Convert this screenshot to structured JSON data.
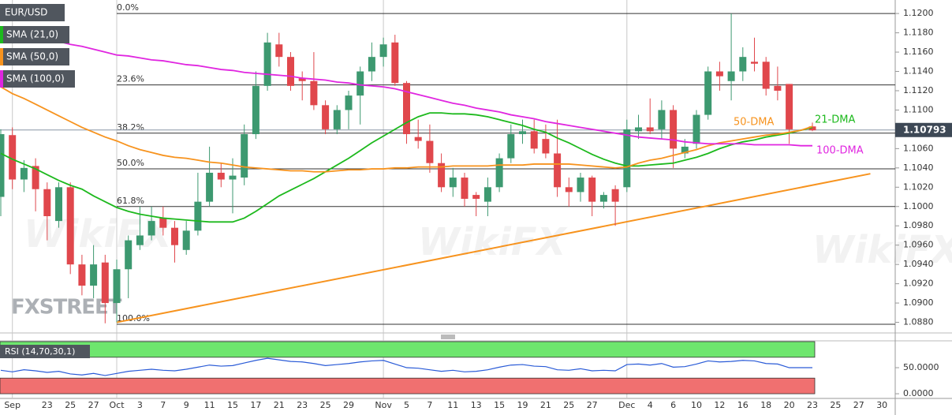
{
  "chart_data": {
    "type": "candlestick",
    "symbol": "EUR/USD",
    "categories": [
      null,
      "Sep",
      null,
      null,
      "23",
      null,
      "25",
      null,
      "27",
      null,
      "Oct",
      null,
      "3",
      null,
      "7",
      null,
      "9",
      null,
      "11",
      null,
      "15",
      null,
      "17",
      null,
      "21",
      null,
      "23",
      null,
      "25",
      null,
      "29",
      null,
      null,
      "Nov",
      null,
      "5",
      null,
      "7",
      null,
      "11",
      null,
      "13",
      null,
      "15",
      null,
      "19",
      null,
      "21",
      null,
      "25",
      null,
      "27",
      null,
      null,
      "Dec",
      null,
      "4",
      null,
      "6",
      null,
      "10",
      null,
      "12",
      null,
      "16",
      null,
      "18",
      null,
      "20",
      null,
      "23",
      null,
      "25",
      null,
      "27",
      null,
      "30",
      null
    ],
    "open": [
      1.101,
      1.1074,
      1.1028,
      1.1042,
      1.1018,
      1.0985,
      1.102,
      1.094,
      1.0918,
      1.0942,
      1.09,
      1.0935,
      1.096,
      1.097,
      1.0988,
      1.0978,
      1.0955,
      1.0975,
      1.1005,
      1.1035,
      1.1028,
      1.103,
      1.1075,
      1.1125,
      1.1168,
      1.1155,
      1.1133,
      1.113,
      1.1105,
      1.108,
      1.11,
      1.1115,
      1.114,
      1.1155,
      1.117,
      1.1128,
      1.1072,
      1.1068,
      1.1045,
      1.102,
      1.103,
      1.1012,
      1.1005,
      1.102,
      1.105,
      1.1075,
      1.1078,
      1.107,
      1.1055,
      1.102,
      1.1015,
      1.103,
      1.1005,
      1.1018,
      1.102,
      1.1078,
      1.1082,
      1.108,
      1.11,
      1.1055,
      1.1065,
      1.1095,
      1.114,
      1.113,
      1.114,
      1.115,
      1.115,
      1.1125,
      1.1127,
      null,
      1.1083,
      null,
      null,
      null,
      null,
      null,
      null,
      null
    ],
    "high": [
      1.108,
      1.1082,
      1.1048,
      1.105,
      1.1025,
      1.1025,
      1.1025,
      1.095,
      1.096,
      1.095,
      1.0945,
      1.097,
      1.1,
      1.1,
      1.1,
      1.0985,
      1.0985,
      1.1035,
      1.1062,
      1.1045,
      1.105,
      1.1085,
      1.114,
      1.118,
      1.118,
      1.116,
      1.114,
      1.116,
      1.111,
      1.1105,
      1.112,
      1.1145,
      1.117,
      1.1175,
      1.1178,
      1.113,
      1.109,
      1.1085,
      1.1055,
      1.104,
      1.1035,
      1.1015,
      1.103,
      1.1055,
      1.1085,
      1.109,
      1.109,
      1.1085,
      1.109,
      1.103,
      1.1035,
      1.1032,
      1.1015,
      1.1022,
      1.109,
      1.1095,
      1.1112,
      1.111,
      1.1105,
      1.107,
      1.11,
      1.1145,
      1.115,
      1.12,
      1.1165,
      1.1175,
      1.1155,
      1.1145,
      1.1127,
      null,
      1.1087,
      null,
      null,
      null,
      null,
      null,
      null,
      null
    ],
    "low": [
      1.099,
      1.1018,
      1.1015,
      1.0995,
      1.0965,
      1.0978,
      1.093,
      1.0908,
      1.0905,
      1.0879,
      1.088,
      1.0905,
      1.0955,
      1.0965,
      1.097,
      1.0942,
      1.095,
      1.097,
      1.1,
      1.102,
      1.0993,
      1.1022,
      1.107,
      1.112,
      1.1145,
      1.112,
      1.111,
      1.11,
      1.1075,
      1.1075,
      1.108,
      1.1085,
      1.113,
      1.1145,
      1.1125,
      1.1065,
      1.106,
      1.1035,
      1.1015,
      1.101,
      1.1,
      1.099,
      1.099,
      1.1015,
      1.1045,
      1.1065,
      1.1055,
      1.105,
      1.101,
      1.1,
      1.1005,
      1.099,
      1.0998,
      1.098,
      1.1015,
      1.107,
      1.1075,
      1.107,
      1.104,
      1.105,
      1.106,
      1.109,
      1.112,
      1.111,
      1.113,
      1.114,
      1.1115,
      1.111,
      1.1065,
      null,
      1.1078,
      null,
      null,
      null,
      null,
      null,
      null,
      null
    ],
    "close": [
      1.1075,
      1.1028,
      1.104,
      1.1018,
      1.099,
      1.102,
      1.094,
      1.0918,
      1.094,
      1.09,
      1.0935,
      1.0965,
      1.097,
      1.0985,
      1.0978,
      1.096,
      1.0975,
      1.1005,
      1.1035,
      1.1028,
      1.1032,
      1.1075,
      1.1125,
      1.117,
      1.1155,
      1.1125,
      1.113,
      1.1105,
      1.108,
      1.11,
      1.1115,
      1.114,
      1.1155,
      1.1168,
      1.1128,
      1.1075,
      1.1068,
      1.1045,
      1.102,
      1.103,
      1.1008,
      1.1008,
      1.102,
      1.105,
      1.1075,
      1.1078,
      1.106,
      1.1055,
      1.102,
      1.1015,
      1.103,
      1.1005,
      1.1012,
      1.1005,
      1.108,
      1.1082,
      1.1078,
      1.11,
      1.106,
      1.1062,
      1.1095,
      1.114,
      1.1135,
      1.114,
      1.1155,
      1.1148,
      1.1122,
      1.112,
      1.108,
      null,
      1.1079,
      null,
      null,
      null,
      null,
      null,
      null,
      null
    ],
    "up_color": "#3d9970",
    "down_color": "#e0474c",
    "overlays": [
      {
        "name": "SMA (21,0)",
        "color": "#1db91d",
        "values": [
          1.1055,
          1.1049,
          1.1044,
          1.1039,
          1.1033,
          1.1027,
          1.1022,
          1.1018,
          1.1011,
          1.1005,
          1.0999,
          1.0995,
          1.0992,
          1.099,
          1.0988,
          1.0987,
          1.0986,
          1.0985,
          1.0984,
          1.0984,
          1.0984,
          1.0988,
          1.0995,
          1.1003,
          1.1011,
          1.1017,
          1.1023,
          1.1029,
          1.1036,
          1.1043,
          1.105,
          1.1058,
          1.1066,
          1.1073,
          1.108,
          1.1087,
          1.1093,
          1.1097,
          1.1097,
          1.1096,
          1.1096,
          1.1095,
          1.1093,
          1.109,
          1.1087,
          1.1084,
          1.108,
          1.1077,
          1.1071,
          1.1066,
          1.106,
          1.1054,
          1.1049,
          1.1045,
          1.1042,
          1.1042,
          1.1043,
          1.1044,
          1.1045,
          1.1048,
          1.1051,
          1.1055,
          1.106,
          1.1064,
          1.1067,
          1.1069,
          1.1072,
          1.1074,
          1.1076,
          1.1079,
          1.1082,
          null,
          null,
          null,
          null,
          null,
          null,
          null
        ]
      },
      {
        "name": "SMA (50,0)",
        "color": "#f7931e",
        "values": [
          1.1124,
          1.1117,
          1.1112,
          1.1106,
          1.11,
          1.1094,
          1.1088,
          1.1082,
          1.1077,
          1.1072,
          1.1068,
          1.1063,
          1.1059,
          1.1056,
          1.1053,
          1.1051,
          1.105,
          1.1048,
          1.1046,
          1.1045,
          1.1043,
          1.1041,
          1.104,
          1.1039,
          1.1038,
          1.1037,
          1.1037,
          1.1036,
          1.1036,
          1.1037,
          1.1038,
          1.1038,
          1.1039,
          1.1039,
          1.104,
          1.104,
          1.1041,
          1.1041,
          1.1041,
          1.1042,
          1.1042,
          1.1042,
          1.1042,
          1.1043,
          1.1043,
          1.1043,
          1.1044,
          1.1044,
          1.1044,
          1.1044,
          1.1043,
          1.1042,
          1.1041,
          1.104,
          1.1041,
          1.1045,
          1.1048,
          1.105,
          1.1053,
          1.1056,
          1.1059,
          1.1063,
          1.1066,
          1.1068,
          1.107,
          1.1072,
          1.1074,
          1.1075,
          1.1077,
          1.1079,
          1.1083,
          null,
          null,
          null,
          null,
          null,
          null,
          null
        ]
      },
      {
        "name": "SMA (100,0)",
        "color": "#e026e0",
        "values": [
          1.1185,
          1.1182,
          1.118,
          1.1177,
          1.1174,
          1.1171,
          1.1168,
          1.1166,
          1.1163,
          1.116,
          1.1157,
          1.1156,
          1.1154,
          1.1152,
          1.1151,
          1.1149,
          1.1147,
          1.1146,
          1.1144,
          1.1142,
          1.1141,
          1.1139,
          1.1138,
          1.1137,
          1.1136,
          1.1135,
          1.1133,
          1.1132,
          1.1131,
          1.1129,
          1.1128,
          1.1126,
          1.1125,
          1.1124,
          1.1122,
          1.1119,
          1.1116,
          1.1113,
          1.111,
          1.1107,
          1.1105,
          1.1102,
          1.11,
          1.1098,
          1.1095,
          1.1093,
          1.1091,
          1.1088,
          1.1086,
          1.1084,
          1.1082,
          1.108,
          1.1078,
          1.1076,
          1.1074,
          1.1072,
          1.1071,
          1.107,
          1.1069,
          1.1067,
          1.1066,
          1.1065,
          1.1065,
          1.1065,
          1.1065,
          1.1064,
          1.1064,
          1.1064,
          1.1064,
          1.1063,
          1.1063,
          null,
          null,
          null,
          null,
          null,
          null,
          null
        ]
      }
    ],
    "ylim": [
      1.0869,
      1.1214
    ],
    "yticks": [
      {
        "value": 1.088,
        "label": "1.0880"
      },
      {
        "value": 1.09,
        "label": "1.0900"
      },
      {
        "value": 1.092,
        "label": "1.0920"
      },
      {
        "value": 1.094,
        "label": "1.0940"
      },
      {
        "value": 1.096,
        "label": "1.0960"
      },
      {
        "value": 1.098,
        "label": "1.0980"
      },
      {
        "value": 1.1,
        "label": "1.1000"
      },
      {
        "value": 1.102,
        "label": "1.1020"
      },
      {
        "value": 1.104,
        "label": "1.1040"
      },
      {
        "value": 1.106,
        "label": "1.1060"
      },
      {
        "value": 1.108,
        "label": "1.1080"
      },
      {
        "value": 1.11,
        "label": "1.1100"
      },
      {
        "value": 1.112,
        "label": "1.1120"
      },
      {
        "value": 1.114,
        "label": "1.1140"
      },
      {
        "value": 1.116,
        "label": "1.1160"
      },
      {
        "value": 1.118,
        "label": "1.1180"
      },
      {
        "value": 1.12,
        "label": "1.1200"
      }
    ],
    "fib_levels": [
      {
        "label": "0.0%",
        "value": 1.12
      },
      {
        "label": "23.6%",
        "value": 1.1126
      },
      {
        "label": "38.2%",
        "value": 1.1076
      },
      {
        "label": "50.0%",
        "value": 1.1039
      },
      {
        "label": "61.8%",
        "value": 1.1
      },
      {
        "label": "100.0%",
        "value": 1.0878
      }
    ],
    "trendline": {
      "x": [
        10,
        75
      ],
      "values": [
        1.088,
        1.1034
      ],
      "color": "#f7931e"
    },
    "annotations": [
      {
        "text": "50-DMA",
        "color": "#f7931e"
      },
      {
        "text": "21-DMA",
        "color": "#1db91d"
      },
      {
        "text": "100-DMA",
        "color": "#e026e0"
      }
    ],
    "last_price": 1.10793,
    "watermarks": [
      "FXSTREET",
      "WikiFX"
    ],
    "rsi": {
      "type": "line",
      "title": "RSI (14,70,30,1)",
      "color": "#2a5bd7",
      "values": [
        45,
        42,
        46,
        44,
        41,
        43,
        38,
        36,
        39,
        35,
        39,
        43,
        45,
        47,
        45,
        44,
        47,
        51,
        55,
        53,
        54,
        59,
        64,
        68,
        65,
        62,
        61,
        58,
        54,
        56,
        58,
        61,
        63,
        64,
        57,
        50,
        49,
        46,
        43,
        45,
        42,
        43,
        46,
        51,
        55,
        56,
        53,
        52,
        46,
        45,
        48,
        44,
        45,
        44,
        56,
        57,
        55,
        58,
        51,
        52,
        57,
        63,
        61,
        62,
        64,
        63,
        58,
        57,
        50,
        50,
        50,
        null,
        null,
        null,
        null,
        null,
        null,
        null
      ],
      "ylim": [
        -9,
        101.5
      ],
      "yticks": [
        {
          "value": 50,
          "label": "50.0000"
        },
        {
          "value": 0,
          "label": "0.0000"
        }
      ],
      "bands": [
        {
          "from": 70,
          "to": 100,
          "color": "#6ee66e"
        },
        {
          "from": 0,
          "to": 30,
          "color": "#f07070"
        }
      ]
    }
  }
}
